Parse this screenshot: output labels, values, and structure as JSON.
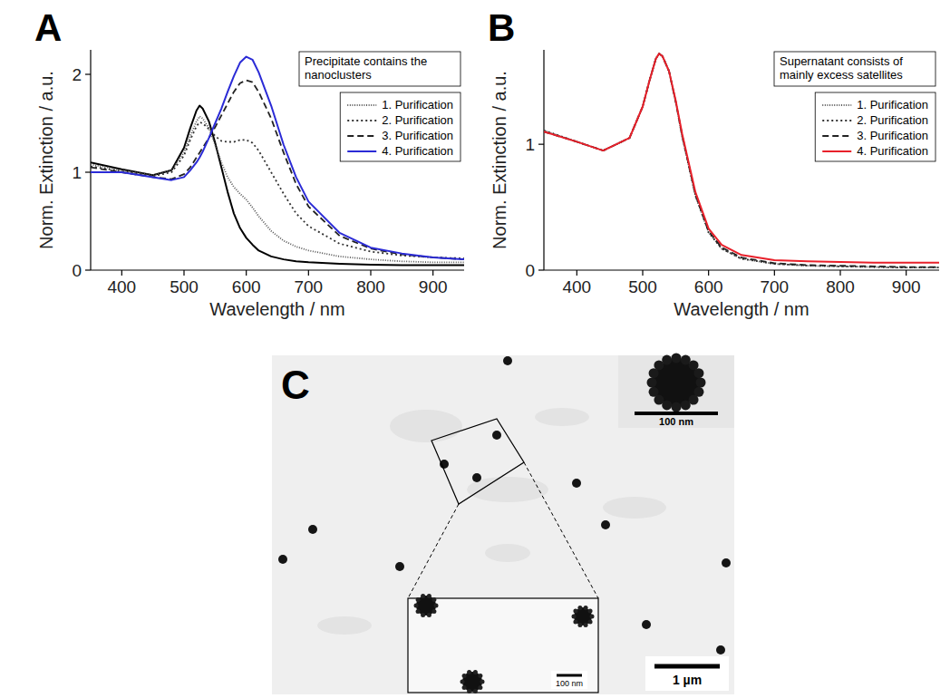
{
  "chart_data": [
    {
      "type": "line",
      "label": "A",
      "annotation": "Precipitate contains the nanoclusters",
      "x_label": "Wavelength / nm",
      "y_label": "Norm. Extinction / a.u.",
      "x": [
        350,
        400,
        450,
        480,
        500,
        510,
        520,
        525,
        530,
        540,
        550,
        560,
        570,
        580,
        590,
        600,
        610,
        620,
        640,
        660,
        680,
        700,
        750,
        800,
        850,
        900,
        950
      ],
      "xlim": [
        350,
        950
      ],
      "xticks": [
        400,
        500,
        600,
        700,
        800,
        900
      ],
      "ylim": [
        0,
        2.25
      ],
      "yticks": [
        0,
        1,
        2
      ],
      "legend": "upper right",
      "series": [
        {
          "color": "#000000",
          "line_style": "solid",
          "values": [
            1.1,
            1.03,
            0.97,
            1.02,
            1.25,
            1.45,
            1.63,
            1.68,
            1.65,
            1.52,
            1.3,
            1.05,
            0.8,
            0.58,
            0.43,
            0.33,
            0.26,
            0.2,
            0.14,
            0.11,
            0.09,
            0.08,
            0.065,
            0.055,
            0.05,
            0.05,
            0.05
          ]
        },
        {
          "name": "1. Purification",
          "color": "#555555",
          "line_style": "densely-dotted",
          "values": [
            1.08,
            1.02,
            0.97,
            1.02,
            1.2,
            1.37,
            1.52,
            1.57,
            1.55,
            1.45,
            1.28,
            1.1,
            0.95,
            0.85,
            0.78,
            0.72,
            0.64,
            0.55,
            0.4,
            0.3,
            0.24,
            0.2,
            0.14,
            0.11,
            0.09,
            0.08,
            0.08
          ]
        },
        {
          "name": "2. Purification",
          "color": "#333333",
          "line_style": "dotted",
          "values": [
            1.06,
            1.01,
            0.96,
            1.0,
            1.17,
            1.33,
            1.47,
            1.51,
            1.5,
            1.44,
            1.37,
            1.32,
            1.31,
            1.31,
            1.33,
            1.33,
            1.3,
            1.22,
            1.0,
            0.78,
            0.58,
            0.45,
            0.27,
            0.19,
            0.15,
            0.13,
            0.12
          ]
        },
        {
          "name": "3. Purification",
          "color": "#222222",
          "line_style": "dashed",
          "values": [
            1.05,
            1.0,
            0.95,
            0.93,
            0.98,
            1.05,
            1.15,
            1.2,
            1.25,
            1.35,
            1.46,
            1.58,
            1.7,
            1.82,
            1.91,
            1.94,
            1.92,
            1.82,
            1.55,
            1.2,
            0.88,
            0.65,
            0.35,
            0.22,
            0.16,
            0.13,
            0.11
          ]
        },
        {
          "name": "4. Purification",
          "color": "#2b2bd6",
          "line_style": "solid",
          "values": [
            1.0,
            1.0,
            0.95,
            0.92,
            0.95,
            1.02,
            1.1,
            1.15,
            1.21,
            1.35,
            1.5,
            1.65,
            1.82,
            1.98,
            2.12,
            2.18,
            2.15,
            2.02,
            1.68,
            1.28,
            0.95,
            0.7,
            0.38,
            0.23,
            0.17,
            0.13,
            0.11
          ]
        }
      ]
    },
    {
      "type": "line",
      "label": "B",
      "annotation": "Supernatant consists of mainly excess satellites",
      "x_label": "Wavelength / nm",
      "y_label": "Norm. Extinction / a.u.",
      "x": [
        350,
        400,
        440,
        480,
        500,
        510,
        520,
        525,
        530,
        540,
        550,
        560,
        580,
        600,
        620,
        650,
        700,
        750,
        800,
        850,
        900,
        950
      ],
      "xlim": [
        350,
        950
      ],
      "xticks": [
        400,
        500,
        600,
        700,
        800,
        900
      ],
      "ylim": [
        0,
        1.75
      ],
      "yticks": [
        0,
        1
      ],
      "legend": "upper right",
      "series": [
        {
          "name": "1. Purification",
          "color": "#555555",
          "line_style": "densely-dotted",
          "values": [
            1.11,
            1.02,
            0.95,
            1.05,
            1.3,
            1.5,
            1.68,
            1.72,
            1.7,
            1.58,
            1.34,
            1.06,
            0.59,
            0.3,
            0.17,
            0.09,
            0.05,
            0.035,
            0.03,
            0.025,
            0.02,
            0.02
          ]
        },
        {
          "name": "2. Purification",
          "color": "#333333",
          "line_style": "dotted",
          "values": [
            1.11,
            1.02,
            0.95,
            1.05,
            1.3,
            1.5,
            1.68,
            1.72,
            1.7,
            1.58,
            1.34,
            1.06,
            0.6,
            0.3,
            0.17,
            0.09,
            0.05,
            0.036,
            0.03,
            0.025,
            0.02,
            0.02
          ]
        },
        {
          "name": "3. Purification",
          "color": "#222222",
          "line_style": "dashed",
          "values": [
            1.1,
            1.02,
            0.95,
            1.05,
            1.3,
            1.5,
            1.68,
            1.72,
            1.7,
            1.58,
            1.34,
            1.07,
            0.6,
            0.31,
            0.18,
            0.1,
            0.055,
            0.04,
            0.035,
            0.03,
            0.025,
            0.025
          ]
        },
        {
          "name": "4. Purification",
          "color": "#e8202a",
          "line_style": "solid",
          "values": [
            1.1,
            1.02,
            0.95,
            1.05,
            1.3,
            1.5,
            1.68,
            1.72,
            1.7,
            1.58,
            1.35,
            1.08,
            0.62,
            0.33,
            0.2,
            0.12,
            0.08,
            0.07,
            0.065,
            0.06,
            0.06,
            0.06
          ]
        }
      ]
    }
  ],
  "image": {
    "label": "C",
    "scale_bar": "1 µm",
    "inset_scale_bar": "100 nm",
    "zoom_scale_bar": "100 nm"
  }
}
